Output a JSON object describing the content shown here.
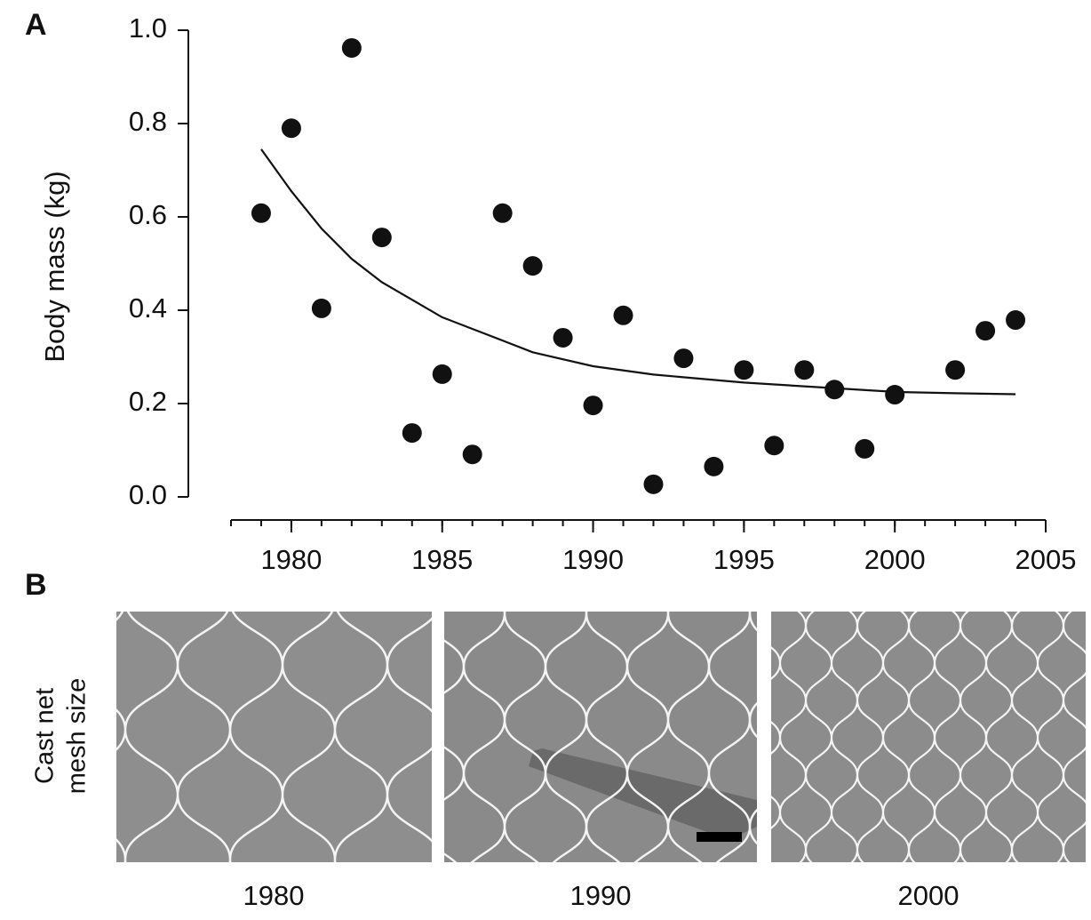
{
  "chart_data": {
    "type": "scatter",
    "panel_label": "A",
    "y_label": "Body mass (kg)",
    "xlim": [
      1978,
      2005
    ],
    "xticks": [
      1980,
      1985,
      1990,
      1995,
      2000,
      2005
    ],
    "xminorticks": [
      1978,
      1979,
      1980,
      1981,
      1982,
      1983,
      1984,
      1985,
      1986,
      1987,
      1988,
      1989,
      1990,
      1991,
      1992,
      1993,
      1994,
      1995,
      1996,
      1997,
      1998,
      1999,
      2000,
      2001,
      2002,
      2003,
      2004,
      2005
    ],
    "ylim": [
      0,
      1
    ],
    "yticks": [
      {
        "value": 0,
        "label": "0.0"
      },
      0.2,
      0.4,
      0.6,
      0.8,
      {
        "value": 1,
        "label": "1.0"
      }
    ],
    "series": [
      {
        "type": "scatter",
        "color": "#111111",
        "x": [
          1979,
          1980,
          1981,
          1982,
          1983,
          1984,
          1985,
          1986,
          1987,
          1988,
          1989,
          1990,
          1991,
          1992,
          1993,
          1994,
          1995,
          1996,
          1997,
          1998,
          1999,
          2000,
          2002,
          2003,
          2004
        ],
        "values": [
          0.608,
          0.79,
          0.404,
          0.962,
          0.556,
          0.137,
          0.263,
          0.091,
          0.608,
          0.495,
          0.341,
          0.196,
          0.389,
          0.027,
          0.297,
          0.065,
          0.272,
          0.11,
          0.272,
          0.23,
          0.103,
          0.219,
          0.272,
          0.356,
          0.379
        ]
      },
      {
        "type": "line",
        "color": "#111111",
        "x": [
          1979,
          1980,
          1981,
          1982,
          1983,
          1985,
          1987,
          1988,
          1990,
          1992,
          1995,
          1997,
          2000,
          2002,
          2004
        ],
        "values": [
          0.745,
          0.655,
          0.575,
          0.51,
          0.46,
          0.385,
          0.335,
          0.31,
          0.28,
          0.262,
          0.245,
          0.237,
          0.225,
          0.222,
          0.22
        ]
      }
    ]
  },
  "panel_b": {
    "panel_label": "B",
    "y_label": [
      "Cast net",
      "mesh size"
    ],
    "captions": [
      "1980",
      "1990",
      "2000"
    ]
  }
}
